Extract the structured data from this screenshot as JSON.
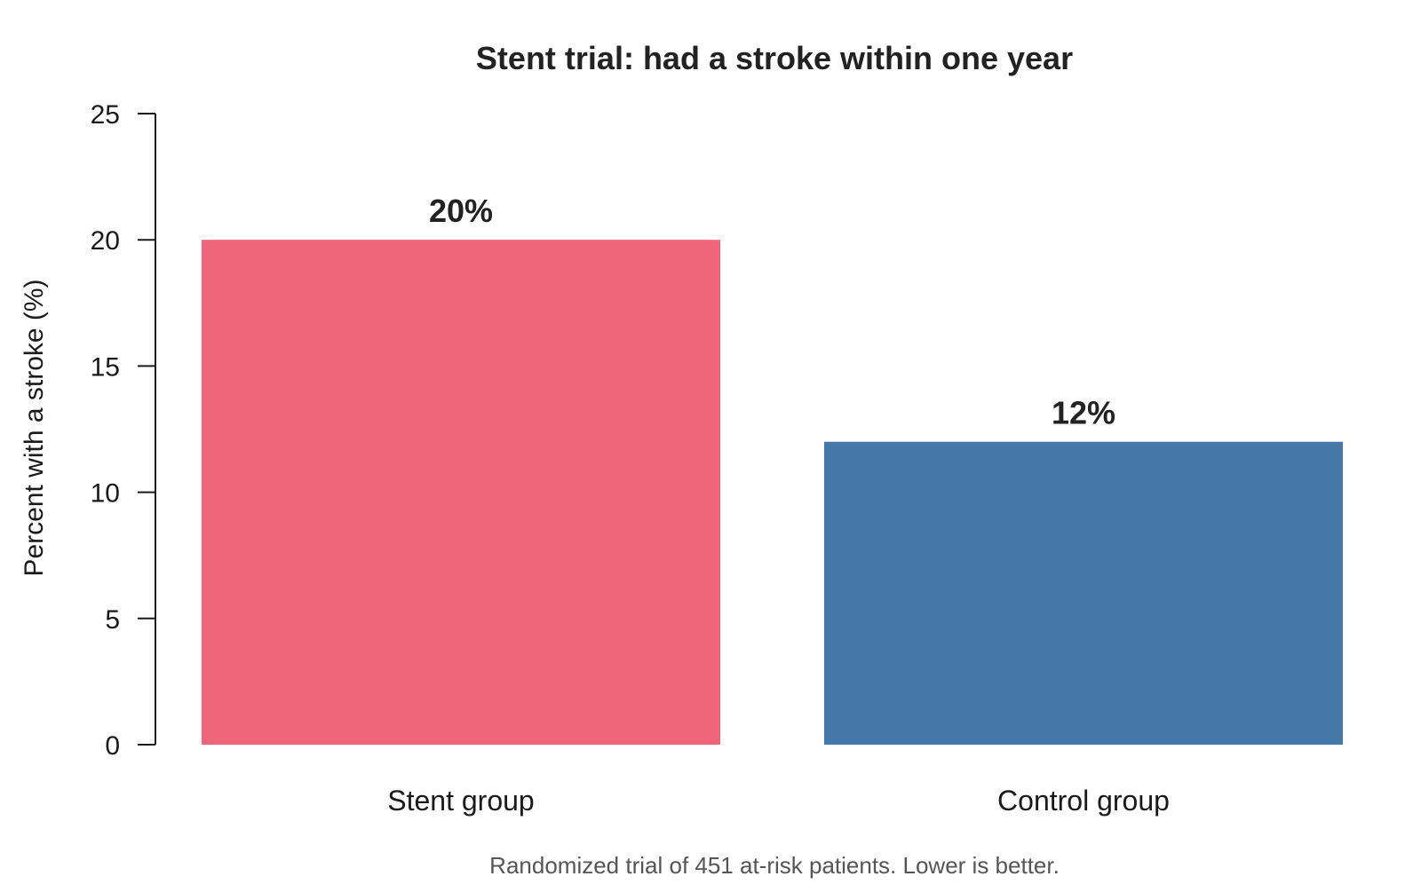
{
  "chart_data": {
    "type": "bar",
    "title": "Stent trial: had a stroke within one year",
    "ylabel": "Percent with a stroke (%)",
    "xlabel": "",
    "categories": [
      "Stent group",
      "Control group"
    ],
    "values": [
      20,
      12
    ],
    "data_labels": [
      "20%",
      "12%"
    ],
    "colors": [
      "#ef6579",
      "#4577a9"
    ],
    "ylim": [
      0,
      25
    ],
    "yticks": [
      0,
      5,
      10,
      15,
      20,
      25
    ],
    "grid": false,
    "legend": "none",
    "caption": "Randomized trial of 451 at-risk patients. Lower is better."
  }
}
